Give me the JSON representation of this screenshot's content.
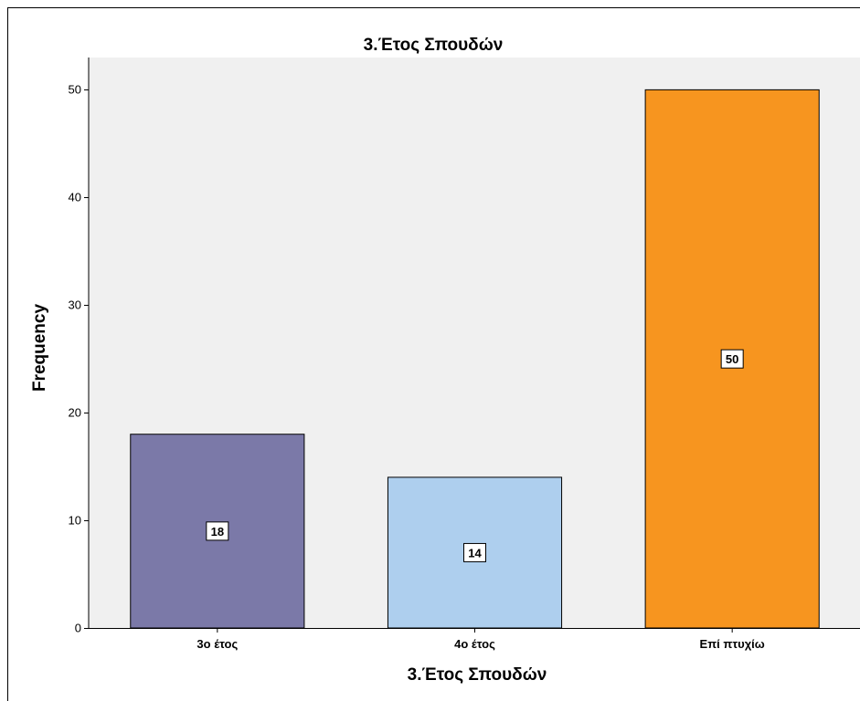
{
  "chart_data": {
    "type": "bar",
    "title": "3.Έτος Σπουδών",
    "xlabel": "3.Έτος Σπουδών",
    "ylabel": "Frequency",
    "categories": [
      "3ο έτος",
      "4ο έτος",
      "Επί πτυχίω"
    ],
    "values": [
      18,
      14,
      50
    ],
    "data_labels": [
      "18",
      "14",
      "50"
    ],
    "colors": [
      "#7b79a8",
      "#aecfee",
      "#f7951f"
    ],
    "ylim": [
      0,
      53
    ],
    "yticks": [
      0,
      10,
      20,
      30,
      40,
      50
    ],
    "ytick_labels": [
      "0",
      "10",
      "20",
      "30",
      "40",
      "50"
    ],
    "plot_background": "#f0f0f0",
    "grid": false,
    "legend": "none"
  }
}
